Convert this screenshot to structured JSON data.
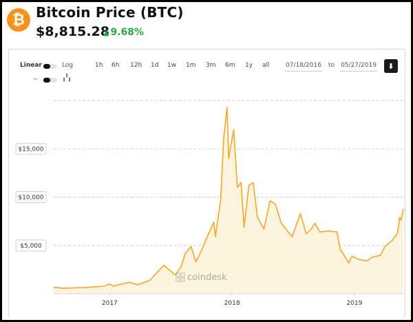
{
  "header": {
    "title": "Bitcoin Price (BTC)",
    "price": "$8,815.28",
    "change": "9.68%",
    "change_arrow": "▲",
    "logo_glyph": "₿"
  },
  "controls": {
    "linear_label": "Linear",
    "log_label": "Log",
    "ranges": [
      "1h",
      "6h",
      "12h",
      "1d",
      "1w",
      "1m",
      "3m",
      "6m",
      "1y",
      "all"
    ],
    "date_from": "07/18/2016",
    "to_label": "to",
    "date_to": "05/27/2019",
    "download_glyph": "⬇"
  },
  "watermark": "coindesk",
  "colors": {
    "line": "#f5a623",
    "fill": "#fdf4df",
    "accent_green": "#2aa843",
    "btc_orange": "#f7931a"
  },
  "chart_data": {
    "type": "area",
    "y_tick_labels": [
      "$5,000",
      "$10,000",
      "$15,000"
    ],
    "y_ticks": [
      5000,
      10000,
      15000
    ],
    "x_tick_labels": [
      "2017",
      "2018",
      "2019"
    ],
    "x_ticks": [
      "2017-01-01",
      "2018-01-01",
      "2019-01-01"
    ],
    "x_range": [
      "2016-07-18",
      "2019-05-27"
    ],
    "ylim": [
      0,
      20000
    ],
    "grid": true,
    "legend": "none",
    "series": [
      {
        "points": [
          [
            "2016-07-18",
            670
          ],
          [
            "2016-08-15",
            580
          ],
          [
            "2016-09-15",
            610
          ],
          [
            "2016-10-15",
            640
          ],
          [
            "2016-11-15",
            720
          ],
          [
            "2016-12-15",
            780
          ],
          [
            "2017-01-01",
            1000
          ],
          [
            "2017-01-12",
            800
          ],
          [
            "2017-02-01",
            970
          ],
          [
            "2017-03-01",
            1190
          ],
          [
            "2017-03-25",
            950
          ],
          [
            "2017-04-15",
            1180
          ],
          [
            "2017-05-01",
            1420
          ],
          [
            "2017-05-25",
            2300
          ],
          [
            "2017-06-12",
            2950
          ],
          [
            "2017-07-16",
            1950
          ],
          [
            "2017-08-01",
            2750
          ],
          [
            "2017-08-15",
            4200
          ],
          [
            "2017-09-01",
            4900
          ],
          [
            "2017-09-15",
            3300
          ],
          [
            "2017-10-01",
            4400
          ],
          [
            "2017-10-20",
            6000
          ],
          [
            "2017-11-08",
            7400
          ],
          [
            "2017-11-12",
            5900
          ],
          [
            "2017-11-28",
            9700
          ],
          [
            "2017-12-07",
            16000
          ],
          [
            "2017-12-17",
            19300
          ],
          [
            "2017-12-22",
            14000
          ],
          [
            "2018-01-06",
            17000
          ],
          [
            "2018-01-17",
            11000
          ],
          [
            "2018-01-28",
            11500
          ],
          [
            "2018-02-06",
            6900
          ],
          [
            "2018-02-20",
            11200
          ],
          [
            "2018-03-05",
            11500
          ],
          [
            "2018-03-18",
            7900
          ],
          [
            "2018-04-06",
            6700
          ],
          [
            "2018-04-24",
            9600
          ],
          [
            "2018-05-10",
            9300
          ],
          [
            "2018-05-28",
            7300
          ],
          [
            "2018-06-15",
            6500
          ],
          [
            "2018-06-29",
            5900
          ],
          [
            "2018-07-24",
            8300
          ],
          [
            "2018-08-10",
            6200
          ],
          [
            "2018-08-25",
            6700
          ],
          [
            "2018-09-05",
            7300
          ],
          [
            "2018-09-20",
            6400
          ],
          [
            "2018-10-15",
            6500
          ],
          [
            "2018-11-10",
            6400
          ],
          [
            "2018-11-20",
            4600
          ],
          [
            "2018-12-15",
            3200
          ],
          [
            "2018-12-25",
            3900
          ],
          [
            "2019-01-10",
            3600
          ],
          [
            "2019-02-07",
            3400
          ],
          [
            "2019-02-25",
            3800
          ],
          [
            "2019-03-20",
            4000
          ],
          [
            "2019-04-02",
            4900
          ],
          [
            "2019-04-23",
            5500
          ],
          [
            "2019-05-10",
            6300
          ],
          [
            "2019-05-16",
            7900
          ],
          [
            "2019-05-20",
            7600
          ],
          [
            "2019-05-27",
            8800
          ]
        ]
      }
    ]
  }
}
